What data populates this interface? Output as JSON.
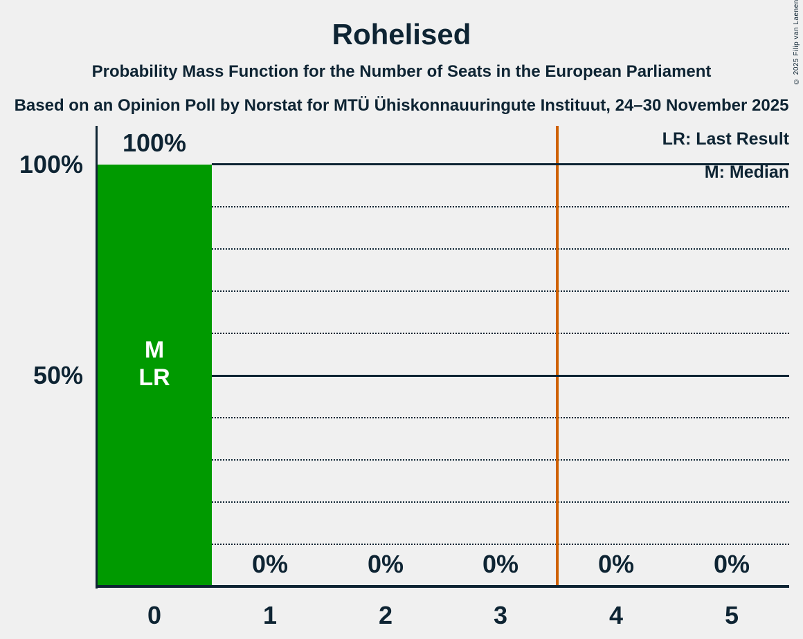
{
  "header": {
    "title": "Rohelised",
    "subtitle1": "Probability Mass Function for the Number of Seats in the European Parliament",
    "subtitle2": "Based on an Opinion Poll by Norstat for MTÜ Ühiskonnauuringute Instituut, 24–30 November 2025",
    "copyright": "© 2025 Filip van Laenen"
  },
  "legend": {
    "last_result": "LR: Last Result",
    "median": "M: Median"
  },
  "chart_data": {
    "type": "bar",
    "title": "Rohelised",
    "categories": [
      "0",
      "1",
      "2",
      "3",
      "4",
      "5"
    ],
    "values": [
      100,
      0,
      0,
      0,
      0,
      0
    ],
    "value_labels": [
      "100%",
      "0%",
      "0%",
      "0%",
      "0%",
      "0%"
    ],
    "ylim": [
      0,
      100
    ],
    "y_tick_labels": {
      "p100": "100%",
      "p50": "50%"
    },
    "gridlines_percent_dotted": [
      10,
      20,
      30,
      40,
      60,
      70,
      80,
      90
    ],
    "gridlines_percent_solid": [
      50,
      100
    ],
    "legend_position": "top-right",
    "bar_annotations": {
      "median": "M",
      "last_result": "LR"
    },
    "median_seats": 0,
    "last_result_seats": 0,
    "vertical_line": {
      "x": 3.5,
      "color": "#CE6100"
    },
    "colors": {
      "bar": "#009A00",
      "vertical_line": "#CE6100",
      "text": "#0E2433",
      "background": "#F0F0F0",
      "bar_annotation_text": "#FFFFFF"
    }
  }
}
